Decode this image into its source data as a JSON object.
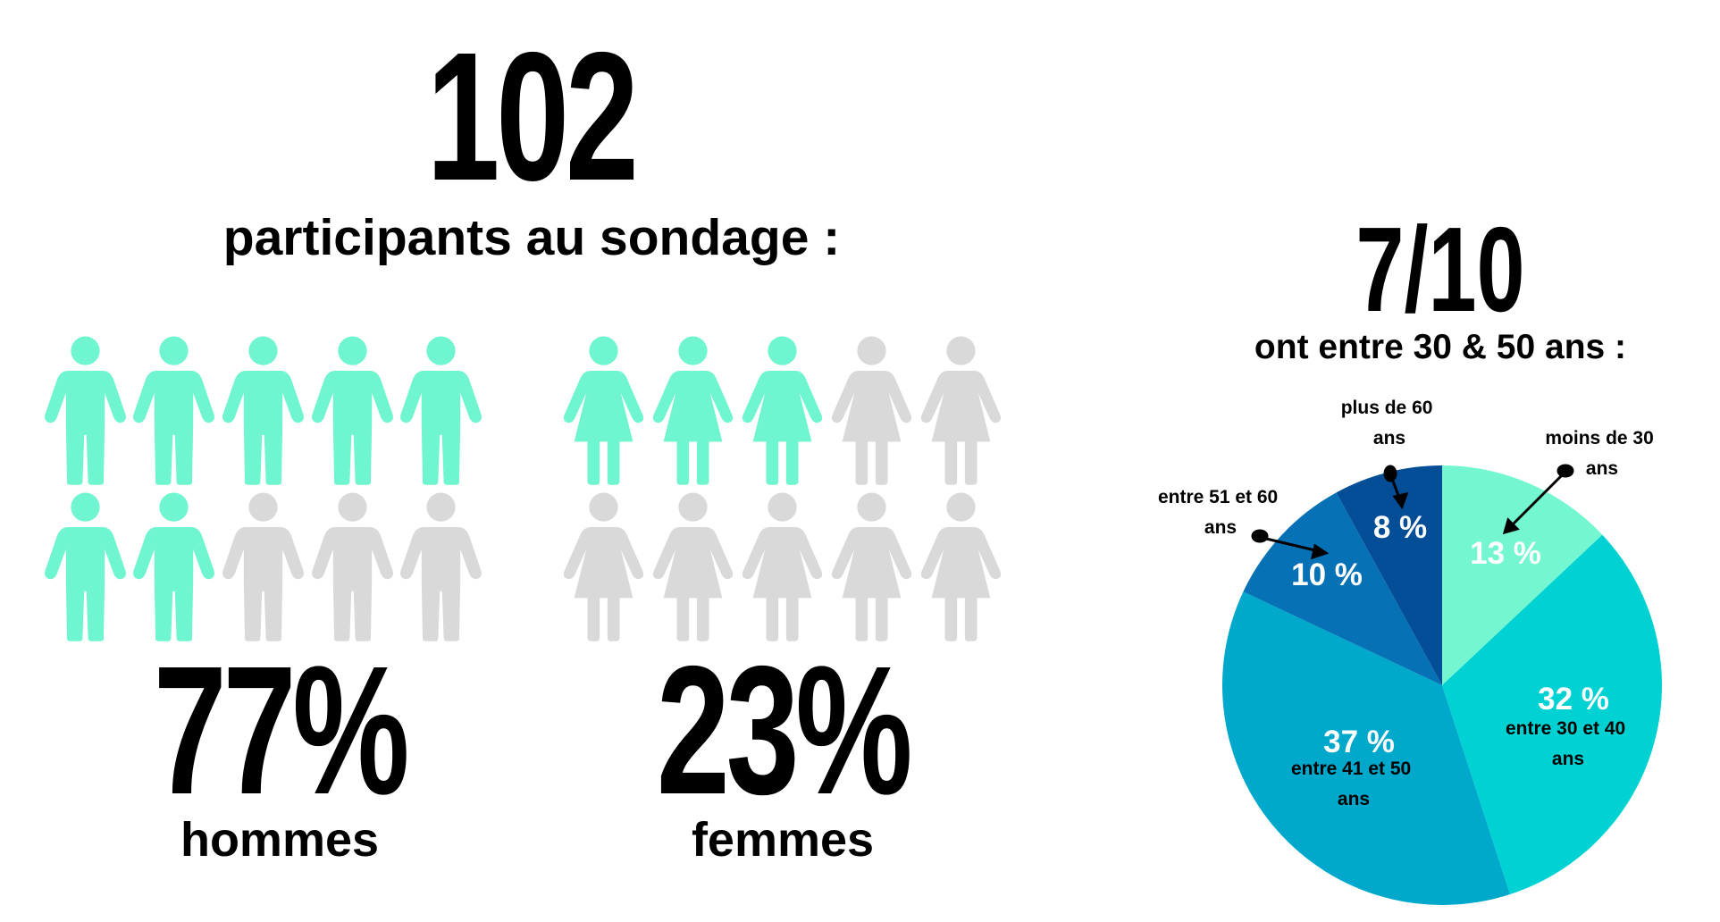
{
  "headline": {
    "number": "102",
    "text": "participants au sondage :"
  },
  "men": {
    "percent": "77%",
    "label": "hommes"
  },
  "women": {
    "percent": "23%",
    "label": "femmes"
  },
  "age": {
    "number": "7/10",
    "text": "ont entre 30 & 50 ans :"
  },
  "chart_data": {
    "type": "pie",
    "categories": [
      "moins de 30 ans",
      "entre 30 et 40 ans",
      "entre 41 et 50 ans",
      "entre 51 et 60 ans",
      "plus de 60 ans"
    ],
    "values": [
      13,
      32,
      37,
      10,
      8
    ],
    "value_labels": [
      "13 %",
      "32 %",
      "37 %",
      "10 %",
      "8 %"
    ],
    "colors": [
      "#74f7d1",
      "#00d2d3",
      "#00a8cb",
      "#0771b5",
      "#034e96"
    ]
  }
}
